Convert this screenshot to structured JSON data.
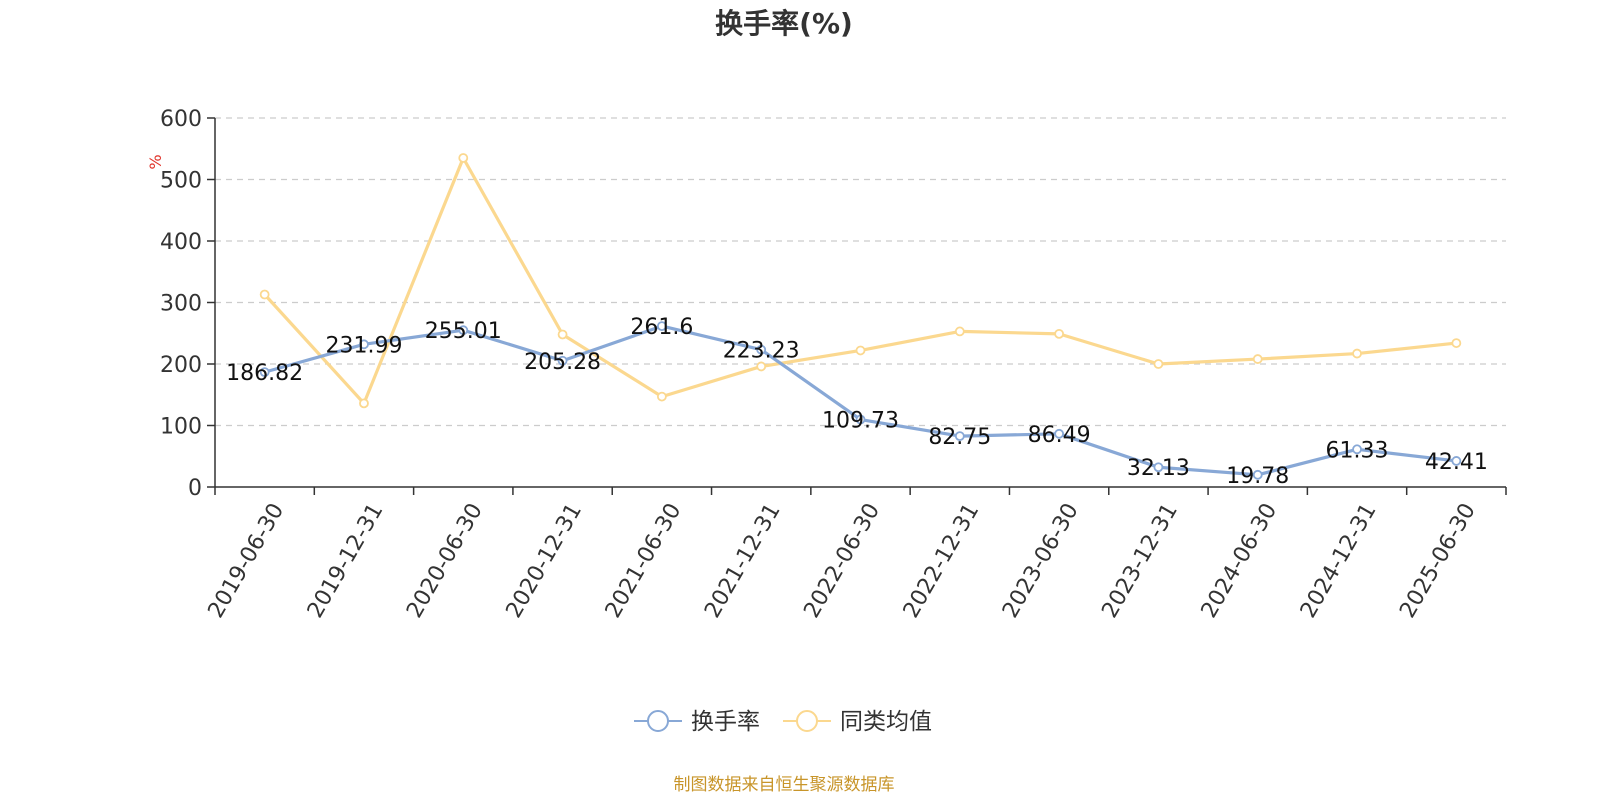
{
  "title": "换手率(%)",
  "source": "制图数据来自恒生聚源数据库",
  "colors": {
    "series_primary": "#88a8d6",
    "series_secondary": "#fbd88f",
    "unit": "#e0332a",
    "source": "#c8952a",
    "grid": "#cccccc",
    "axis": "#333333"
  },
  "chart_data": {
    "type": "line",
    "title": "换手率(%)",
    "ylabel": "%",
    "xlabel": "",
    "ylim": [
      0,
      600
    ],
    "yticks": [
      0,
      100,
      200,
      300,
      400,
      500,
      600
    ],
    "grid": true,
    "legend_position": "bottom-center",
    "categories": [
      "2019-06-30",
      "2019-12-31",
      "2020-06-30",
      "2020-12-31",
      "2021-06-30",
      "2021-12-31",
      "2022-06-30",
      "2022-12-31",
      "2023-06-30",
      "2023-12-31",
      "2024-06-30",
      "2024-12-31",
      "2025-06-30"
    ],
    "series": [
      {
        "name": "换手率",
        "color": "#88a8d6",
        "values": [
          186.82,
          231.99,
          255.01,
          205.28,
          261.6,
          223.23,
          109.73,
          82.75,
          86.49,
          32.13,
          19.78,
          61.33,
          42.41
        ],
        "labels": [
          "186.82",
          "231.99",
          "255.01",
          "205.28",
          "261.6",
          "223.23",
          "109.73",
          "82.75",
          "86.49",
          "32.13",
          "19.78",
          "61.33",
          "42.41"
        ],
        "show_labels": true
      },
      {
        "name": "同类均值",
        "color": "#fbd88f",
        "values": [
          313,
          136,
          535,
          248,
          147,
          196,
          222,
          253,
          249,
          200,
          208,
          217,
          234
        ],
        "show_labels": false
      }
    ]
  }
}
